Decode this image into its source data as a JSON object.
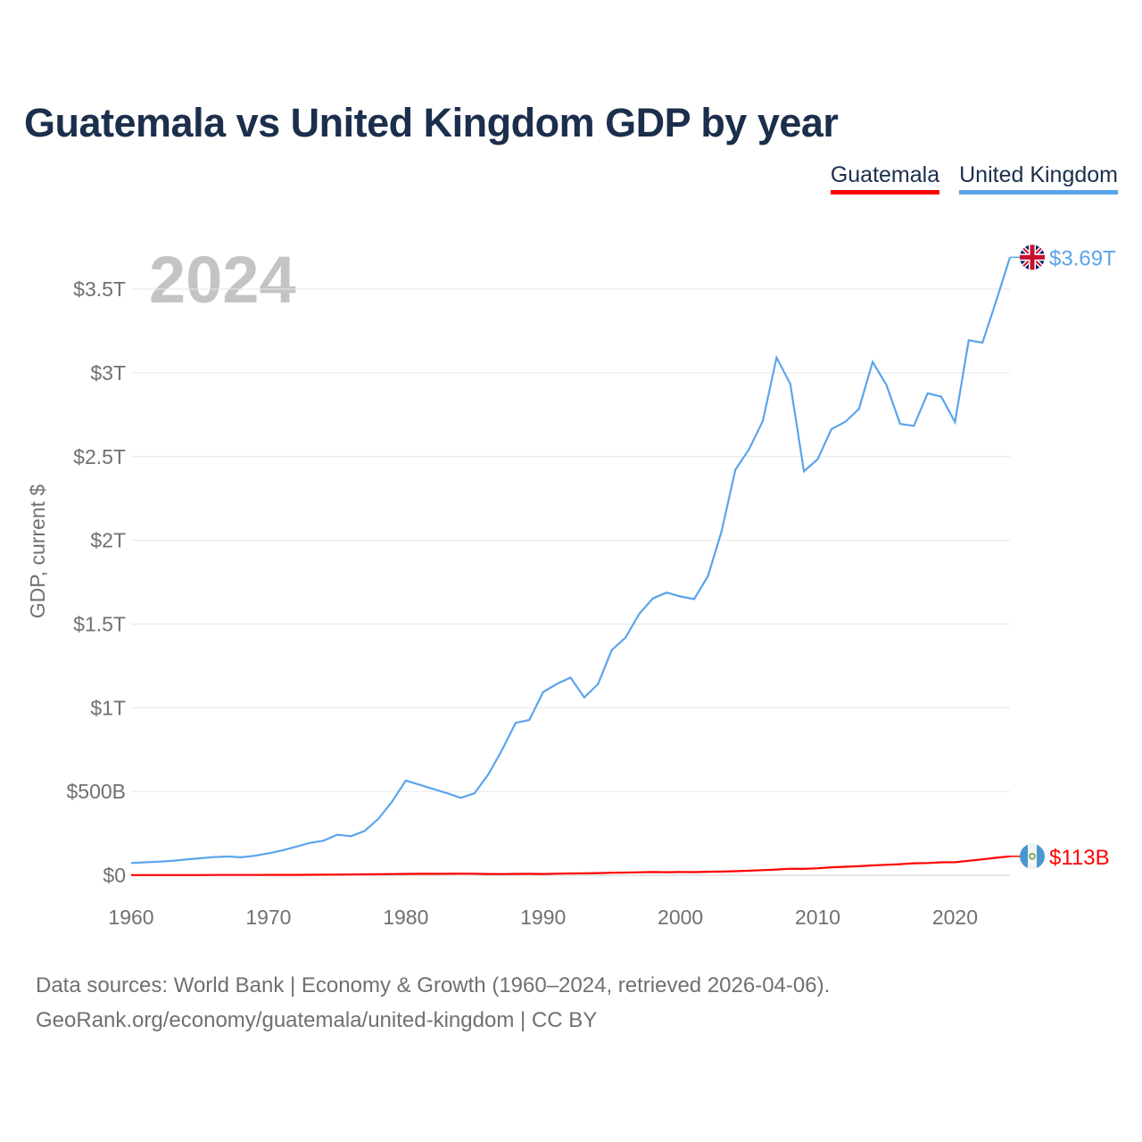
{
  "chart_data": {
    "type": "line",
    "title": "Guatemala vs United Kingdom GDP by year",
    "xlabel": "",
    "ylabel": "GDP, current $",
    "year_label": "2024",
    "xlim": [
      1960,
      2024
    ],
    "ylim": [
      0,
      3.8
    ],
    "y_unit": "trillion USD",
    "x_ticks": [
      1960,
      1970,
      1980,
      1990,
      2000,
      2010,
      2020
    ],
    "y_ticks": [
      {
        "v": 0,
        "label": "$0"
      },
      {
        "v": 0.5,
        "label": "$500B"
      },
      {
        "v": 1,
        "label": "$1T"
      },
      {
        "v": 1.5,
        "label": "$1.5T"
      },
      {
        "v": 2,
        "label": "$2T"
      },
      {
        "v": 2.5,
        "label": "$2.5T"
      },
      {
        "v": 3,
        "label": "$3T"
      },
      {
        "v": 3.5,
        "label": "$3.5T"
      }
    ],
    "grid": true,
    "legend_position": "top-right",
    "series": [
      {
        "name": "Guatemala",
        "color": "#ff0000",
        "end_label": "$113B",
        "flag": "guatemala-flag",
        "values": [
          0.00104,
          0.00108,
          0.00114,
          0.00124,
          0.00127,
          0.00133,
          0.00139,
          0.00145,
          0.00157,
          0.00169,
          0.0019,
          0.00199,
          0.0021,
          0.00257,
          0.00316,
          0.00364,
          0.00437,
          0.00548,
          0.00607,
          0.0069,
          0.00788,
          0.00861,
          0.00872,
          0.00903,
          0.0094,
          0.00913,
          0.00723,
          0.00708,
          0.00787,
          0.00842,
          0.00765,
          0.00941,
          0.01044,
          0.0114,
          0.01298,
          0.01466,
          0.01578,
          0.01766,
          0.01939,
          0.01832,
          0.01929,
          0.0187,
          0.02078,
          0.02192,
          0.02397,
          0.02721,
          0.03023,
          0.03411,
          0.03914,
          0.03773,
          0.04134,
          0.04765,
          0.05039,
          0.05385,
          0.05872,
          0.06219,
          0.06604,
          0.07162,
          0.07325,
          0.07717,
          0.0776,
          0.08605,
          0.095,
          0.10445,
          0.113
        ]
      },
      {
        "name": "United Kingdom",
        "color": "#5ba4ec",
        "end_label": "$3.69T",
        "flag": "uk-flag",
        "values": [
          0.073,
          0.077,
          0.081,
          0.086,
          0.094,
          0.101,
          0.108,
          0.112,
          0.107,
          0.116,
          0.131,
          0.148,
          0.17,
          0.193,
          0.206,
          0.242,
          0.233,
          0.264,
          0.336,
          0.439,
          0.565,
          0.54,
          0.515,
          0.49,
          0.462,
          0.489,
          0.601,
          0.746,
          0.91,
          0.927,
          1.093,
          1.143,
          1.18,
          1.062,
          1.141,
          1.345,
          1.419,
          1.561,
          1.653,
          1.688,
          1.665,
          1.649,
          1.785,
          2.054,
          2.421,
          2.544,
          2.713,
          3.091,
          2.934,
          2.412,
          2.485,
          2.664,
          2.707,
          2.784,
          3.065,
          2.928,
          2.695,
          2.683,
          2.878,
          2.858,
          2.706,
          3.195,
          3.18,
          3.43,
          3.69
        ]
      }
    ]
  },
  "footer": {
    "line1": "Data sources: World Bank | Economy & Growth (1960–2024, retrieved 2026-04-06).",
    "line2": "GeoRank.org/economy/guatemala/united-kingdom | CC BY"
  }
}
